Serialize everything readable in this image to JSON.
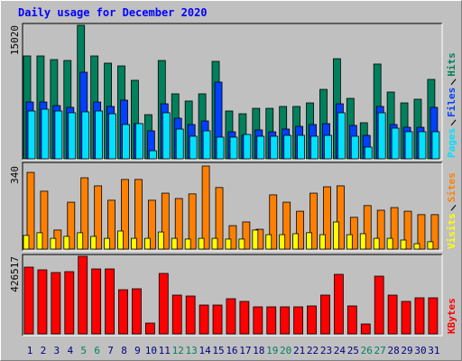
{
  "title": "Daily usage for December 2020",
  "chart_data": [
    {
      "type": "bar",
      "ylim": [
        0,
        15020
      ],
      "yticks": [
        15020
      ],
      "series": [
        {
          "name": "Hits",
          "color": "#00805c",
          "values": [
            11570,
            11570,
            11160,
            11060,
            15020,
            11570,
            10760,
            10450,
            8830,
            4970,
            11060,
            7310,
            6500,
            7310,
            10960,
            5380,
            5070,
            5680,
            5680,
            5890,
            5890,
            6290,
            7810,
            11260,
            6800,
            4060,
            10660,
            7510,
            6290,
            6700,
            8930
          ]
        },
        {
          "name": "Files",
          "color": "#0040ff",
          "values": [
            6390,
            6390,
            5990,
            5790,
            9740,
            6390,
            5890,
            6600,
            3960,
            3150,
            6190,
            4570,
            3860,
            4260,
            8630,
            3040,
            2640,
            3250,
            3040,
            3350,
            3650,
            3860,
            3960,
            6190,
            3760,
            2640,
            5890,
            3860,
            3550,
            3550,
            5790
          ]
        },
        {
          "name": "Pages",
          "color": "#00e0ff",
          "values": [
            5380,
            5580,
            5380,
            5180,
            5280,
            5380,
            5070,
            3860,
            3960,
            910,
            5180,
            3350,
            2540,
            3150,
            2440,
            2440,
            2740,
            2540,
            2540,
            2640,
            2640,
            2540,
            2640,
            5180,
            2540,
            1320,
            5180,
            3450,
            3050,
            3050,
            3050
          ]
        }
      ]
    },
    {
      "type": "bar",
      "ylim": [
        0,
        340
      ],
      "yticks": [
        340
      ],
      "series": [
        {
          "name": "Sites",
          "color": "#ff8000",
          "values": [
            314,
            237,
            78,
            192,
            292,
            259,
            200,
            285,
            285,
            200,
            229,
            207,
            226,
            340,
            252,
            96,
            111,
            81,
            222,
            192,
            155,
            229,
            255,
            259,
            130,
            178,
            159,
            170,
            155,
            141,
            141
          ]
        },
        {
          "name": "Visits",
          "color": "#ffff00",
          "values": [
            56,
            67,
            44,
            52,
            67,
            52,
            44,
            74,
            44,
            44,
            70,
            44,
            41,
            44,
            44,
            41,
            41,
            78,
            59,
            59,
            63,
            67,
            59,
            111,
            59,
            63,
            44,
            44,
            37,
            22,
            30
          ]
        }
      ]
    },
    {
      "type": "bar",
      "ylim": [
        0,
        426517
      ],
      "yticks": [
        426517
      ],
      "categories": [
        "1",
        "2",
        "3",
        "4",
        "5",
        "6",
        "7",
        "8",
        "9",
        "10",
        "11",
        "12",
        "13",
        "14",
        "15",
        "16",
        "17",
        "18",
        "19",
        "20",
        "21",
        "22",
        "23",
        "24",
        "25",
        "26",
        "27",
        "28",
        "29",
        "30",
        "31"
      ],
      "category_colors": [
        "#000080",
        "#000080",
        "#000080",
        "#000080",
        "#00805c",
        "#00805c",
        "#000080",
        "#000080",
        "#000080",
        "#000080",
        "#000080",
        "#00805c",
        "#00805c",
        "#000080",
        "#000080",
        "#000080",
        "#000080",
        "#000080",
        "#00805c",
        "#00805c",
        "#000080",
        "#000080",
        "#000080",
        "#000080",
        "#000080",
        "#00805c",
        "#00805c",
        "#000080",
        "#000080",
        "#000080",
        "#000080"
      ],
      "series": [
        {
          "name": "KBytes",
          "color": "#ff0000",
          "values": [
            367000,
            352200,
            337300,
            342200,
            426517,
            357100,
            357100,
            243000,
            248000,
            59500,
            332300,
            213300,
            208300,
            158700,
            158700,
            193400,
            178600,
            148800,
            148800,
            148800,
            148800,
            153800,
            213300,
            327400,
            153800,
            54600,
            317400,
            213300,
            178600,
            198400,
            198400
          ]
        }
      ]
    }
  ]
}
